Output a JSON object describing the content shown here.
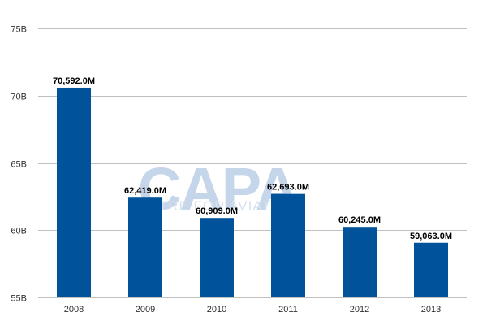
{
  "chart_data": {
    "type": "bar",
    "categories": [
      "2008",
      "2009",
      "2010",
      "2011",
      "2012",
      "2013"
    ],
    "values": [
      70592.0,
      62419.0,
      60909.0,
      62693.0,
      60245.0,
      59063.0
    ],
    "value_labels": [
      "70,592.0M",
      "62,419.0M",
      "60,909.0M",
      "62,693.0M",
      "60,245.0M",
      "59,063.0M"
    ],
    "y_unit": "M",
    "ylim": [
      55000,
      75000
    ],
    "y_ticks": [
      55000,
      60000,
      65000,
      70000,
      75000
    ],
    "y_tick_labels": [
      "55B",
      "60B",
      "65B",
      "70B",
      "75B"
    ],
    "title": "",
    "xlabel": "",
    "ylabel": "",
    "grid": true,
    "bar_color": "#00529b",
    "grid_color": "#c0c0c0"
  },
  "watermark": {
    "logo_text": "CAPA",
    "tagline": "CENTRE FOR AVIATION",
    "color": "#c6d6ea"
  }
}
